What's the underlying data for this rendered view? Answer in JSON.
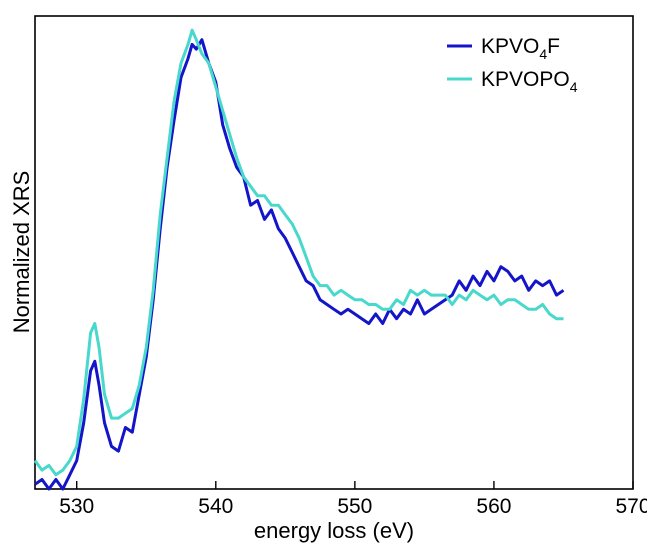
{
  "chart_data": {
    "type": "line",
    "title": "",
    "xlabel": "energy loss (eV)",
    "ylabel": "Normalized XRS",
    "xlim": [
      527,
      570
    ],
    "ylim": [
      0,
      1.0
    ],
    "x_ticks": [
      530,
      540,
      550,
      560,
      570
    ],
    "y_ticks_visible": false,
    "grid": false,
    "legend_position": "top-right",
    "series": [
      {
        "name": "KPVO₄F",
        "legend_main": "KPVO",
        "legend_sub": "4",
        "legend_tail": "F",
        "color": "#1414c8",
        "x": [
          527.0,
          527.5,
          528.0,
          528.5,
          529.0,
          529.5,
          530.0,
          530.5,
          531.0,
          531.3,
          531.6,
          532.0,
          532.5,
          533.0,
          533.5,
          534.0,
          534.5,
          535.0,
          535.5,
          536.0,
          536.5,
          537.0,
          537.5,
          538.0,
          538.3,
          538.6,
          539.0,
          539.5,
          540.0,
          540.5,
          541.0,
          541.5,
          542.0,
          542.5,
          543.0,
          543.5,
          544.0,
          544.5,
          545.0,
          545.5,
          546.0,
          546.5,
          547.0,
          547.5,
          548.0,
          548.5,
          549.0,
          549.5,
          550.0,
          550.5,
          551.0,
          551.5,
          552.0,
          552.5,
          553.0,
          553.5,
          554.0,
          554.5,
          555.0,
          555.5,
          556.0,
          556.5,
          557.0,
          557.5,
          558.0,
          558.5,
          559.0,
          559.5,
          560.0,
          560.5,
          561.0,
          561.5,
          562.0,
          562.5,
          563.0,
          563.5,
          564.0,
          564.5,
          565.0
        ],
        "y": [
          0.01,
          0.02,
          0.0,
          0.02,
          0.0,
          0.03,
          0.06,
          0.14,
          0.25,
          0.27,
          0.22,
          0.14,
          0.09,
          0.08,
          0.13,
          0.12,
          0.2,
          0.28,
          0.4,
          0.55,
          0.68,
          0.78,
          0.87,
          0.91,
          0.94,
          0.93,
          0.95,
          0.9,
          0.86,
          0.77,
          0.72,
          0.68,
          0.66,
          0.6,
          0.61,
          0.57,
          0.59,
          0.55,
          0.53,
          0.5,
          0.47,
          0.44,
          0.43,
          0.4,
          0.39,
          0.38,
          0.37,
          0.38,
          0.37,
          0.36,
          0.35,
          0.37,
          0.35,
          0.38,
          0.36,
          0.38,
          0.37,
          0.4,
          0.37,
          0.38,
          0.39,
          0.4,
          0.41,
          0.44,
          0.42,
          0.45,
          0.43,
          0.46,
          0.44,
          0.47,
          0.46,
          0.44,
          0.45,
          0.42,
          0.44,
          0.43,
          0.44,
          0.41,
          0.42
        ]
      },
      {
        "name": "KPVOPO₄",
        "legend_main": "KPVOPO",
        "legend_sub": "4",
        "legend_tail": "",
        "color": "#48d8cc",
        "x": [
          527.0,
          527.5,
          528.0,
          528.5,
          529.0,
          529.5,
          530.0,
          530.5,
          531.0,
          531.3,
          531.6,
          532.0,
          532.5,
          533.0,
          533.5,
          534.0,
          534.5,
          535.0,
          535.5,
          536.0,
          536.5,
          537.0,
          537.5,
          538.0,
          538.3,
          538.6,
          539.0,
          539.5,
          540.0,
          540.5,
          541.0,
          541.5,
          542.0,
          542.5,
          543.0,
          543.5,
          544.0,
          544.5,
          545.0,
          545.5,
          546.0,
          546.5,
          547.0,
          547.5,
          548.0,
          548.5,
          549.0,
          549.5,
          550.0,
          550.5,
          551.0,
          551.5,
          552.0,
          552.5,
          553.0,
          553.5,
          554.0,
          554.5,
          555.0,
          555.5,
          556.0,
          556.5,
          557.0,
          557.5,
          558.0,
          558.5,
          559.0,
          559.5,
          560.0,
          560.5,
          561.0,
          561.5,
          562.0,
          562.5,
          563.0,
          563.5,
          564.0,
          564.5,
          565.0
        ],
        "y": [
          0.06,
          0.04,
          0.05,
          0.03,
          0.04,
          0.06,
          0.09,
          0.19,
          0.33,
          0.35,
          0.3,
          0.2,
          0.15,
          0.15,
          0.16,
          0.17,
          0.22,
          0.3,
          0.42,
          0.58,
          0.7,
          0.82,
          0.9,
          0.94,
          0.97,
          0.95,
          0.92,
          0.9,
          0.85,
          0.8,
          0.75,
          0.7,
          0.66,
          0.64,
          0.62,
          0.62,
          0.6,
          0.6,
          0.58,
          0.56,
          0.53,
          0.49,
          0.45,
          0.43,
          0.43,
          0.41,
          0.42,
          0.41,
          0.4,
          0.4,
          0.39,
          0.39,
          0.38,
          0.38,
          0.4,
          0.39,
          0.42,
          0.41,
          0.42,
          0.41,
          0.41,
          0.41,
          0.39,
          0.41,
          0.4,
          0.42,
          0.41,
          0.4,
          0.41,
          0.39,
          0.4,
          0.4,
          0.39,
          0.38,
          0.38,
          0.39,
          0.37,
          0.36,
          0.36
        ]
      }
    ]
  }
}
